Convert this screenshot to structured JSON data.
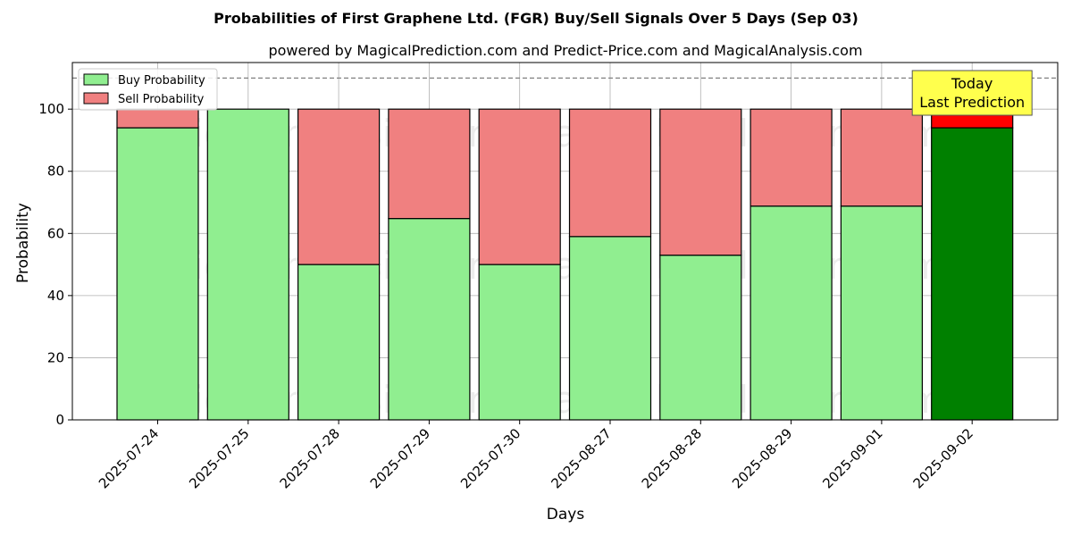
{
  "chart_data": {
    "type": "bar",
    "stacked": true,
    "title": "Probabilities of First Graphene Ltd. (FGR) Buy/Sell Signals Over 5 Days (Sep 03)",
    "subtitle": "powered by MagicalPrediction.com and Predict-Price.com and MagicalAnalysis.com",
    "xlabel": "Days",
    "ylabel": "Probability",
    "ylim": [
      0,
      115
    ],
    "yticks": [
      0,
      20,
      40,
      60,
      80,
      100
    ],
    "grid": true,
    "legend_position": "top-left",
    "reference_line": 110,
    "categories": [
      "2025-07-24",
      "2025-07-25",
      "2025-07-28",
      "2025-07-29",
      "2025-07-30",
      "2025-08-27",
      "2025-08-28",
      "2025-08-29",
      "2025-09-01",
      "2025-09-02"
    ],
    "series": [
      {
        "name": "Buy Probability",
        "color": "#90ee90",
        "highlight_color": "#008000",
        "values": [
          94,
          100,
          50,
          64.8,
          50,
          59,
          53,
          68.8,
          68.8,
          94
        ]
      },
      {
        "name": "Sell Probability",
        "color": "#f08080",
        "highlight_color": "#ff0000",
        "values": [
          6,
          0,
          50,
          35.2,
          50,
          41,
          47,
          31.2,
          31.2,
          6
        ]
      }
    ],
    "annotation": {
      "lines": [
        "Today",
        "Last Prediction"
      ],
      "category": "2025-09-02",
      "background": "#ffff4d"
    },
    "watermarks": [
      "MagicalAnalysis.com",
      "MagicalPrediction.com"
    ]
  }
}
